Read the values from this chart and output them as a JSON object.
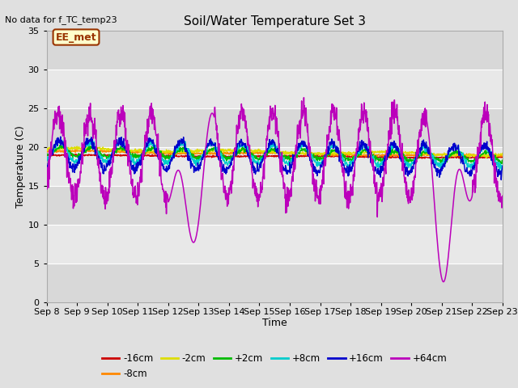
{
  "title": "Soil/Water Temperature Set 3",
  "no_data_text": "No data for f_TC_temp23",
  "xlabel": "Time",
  "ylabel": "Temperature (C)",
  "ylim": [
    0,
    35
  ],
  "yticks": [
    0,
    5,
    10,
    15,
    20,
    25,
    30,
    35
  ],
  "x_tick_labels": [
    "Sep 8",
    "Sep 9",
    "Sep 10",
    "Sep 11",
    "Sep 12",
    "Sep 13",
    "Sep 14",
    "Sep 15",
    "Sep 16",
    "Sep 17",
    "Sep 18",
    "Sep 19",
    "Sep 20",
    "Sep 21",
    "Sep 22",
    "Sep 23"
  ],
  "legend_entries": [
    {
      "label": "-16cm",
      "color": "#cc0000"
    },
    {
      "label": "-8cm",
      "color": "#ff8800"
    },
    {
      "label": "-2cm",
      "color": "#dddd00"
    },
    {
      "label": "+2cm",
      "color": "#00bb00"
    },
    {
      "label": "+8cm",
      "color": "#00cccc"
    },
    {
      "label": "+16cm",
      "color": "#0000cc"
    },
    {
      "label": "+64cm",
      "color": "#bb00bb"
    }
  ],
  "ee_met_box": {
    "text": "EE_met",
    "facecolor": "#ffffcc",
    "edgecolor": "#993300",
    "textcolor": "#993300"
  },
  "fig_bg_color": "#e0e0e0",
  "plot_bg_color": "#e8e8e8",
  "band_light": "#ebebeb",
  "band_dark": "#d8d8d8"
}
